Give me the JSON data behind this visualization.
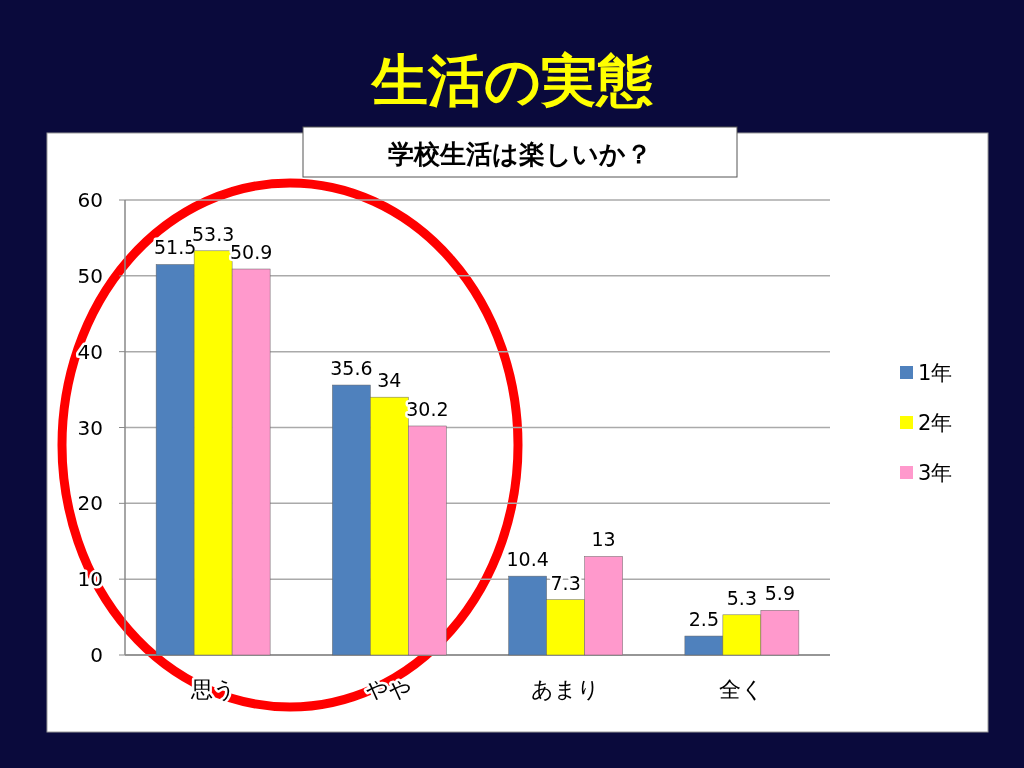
{
  "chart_data": {
    "type": "bar",
    "title": "生活の実態",
    "subtitle": "学校生活は楽しいか？",
    "categories": [
      "思う",
      "やや",
      "あまり",
      "全く"
    ],
    "series": [
      {
        "name": "1年",
        "color": "#4f81bd",
        "values": [
          51.5,
          35.6,
          10.4,
          2.5
        ]
      },
      {
        "name": "2年",
        "color": "#ffff00",
        "values": [
          53.3,
          34,
          7.3,
          5.3
        ]
      },
      {
        "name": "3年",
        "color": "#ff99cc",
        "values": [
          50.9,
          30.2,
          13,
          5.9
        ]
      }
    ],
    "ylim": [
      0,
      60
    ],
    "yticks": [
      0,
      10,
      20,
      30,
      40,
      50,
      60
    ],
    "grid": "y",
    "legend": "right",
    "data_labels": true
  }
}
